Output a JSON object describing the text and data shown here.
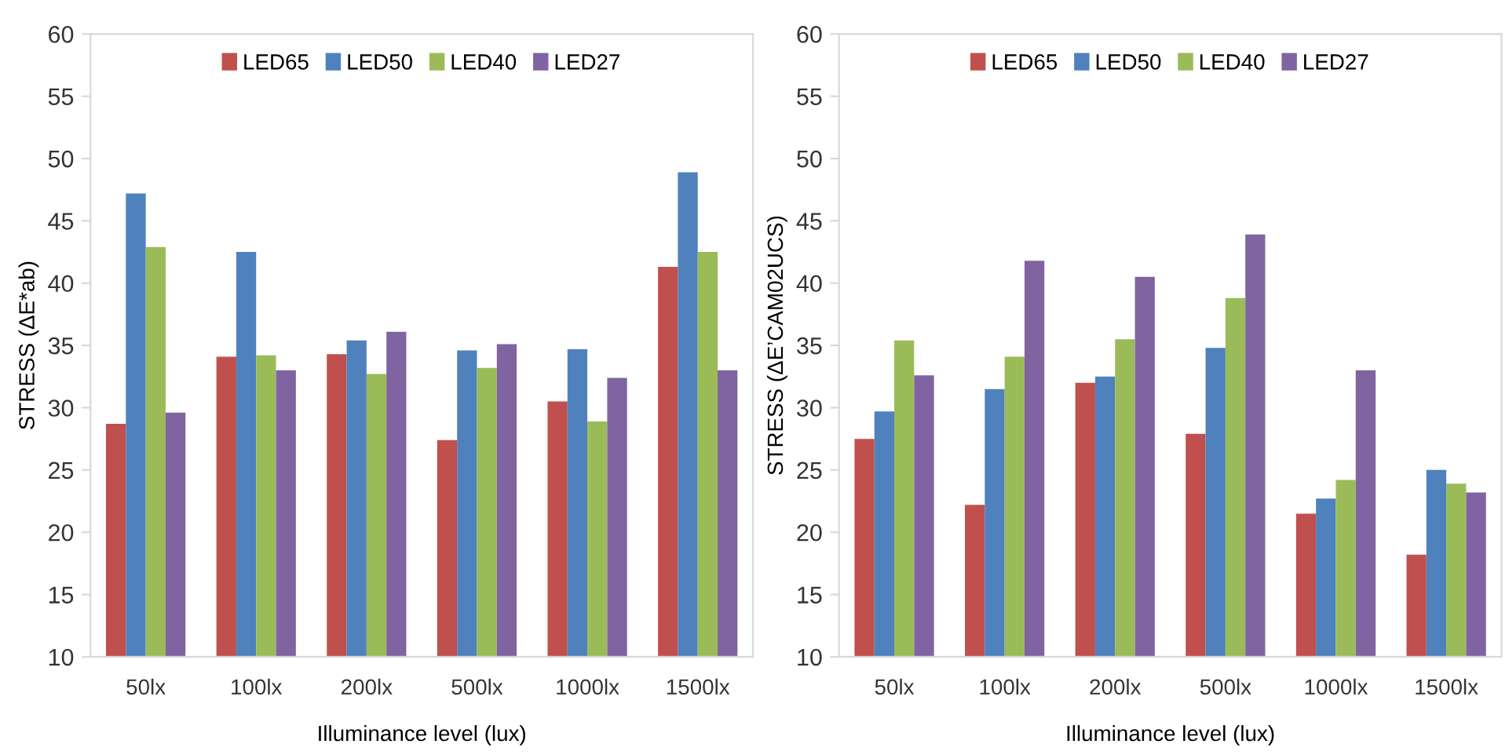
{
  "chart_data": [
    {
      "type": "bar",
      "xlabel": "Illuminance level (lux)",
      "ylabel": "STRESS (ΔE*ab)",
      "categories": [
        "50lx",
        "100lx",
        "200lx",
        "500lx",
        "1000lx",
        "1500lx"
      ],
      "ylim": [
        10,
        60
      ],
      "yticks": [
        10,
        15,
        20,
        25,
        30,
        35,
        40,
        45,
        50,
        55,
        60
      ],
      "grid": false,
      "legend": "top",
      "series": [
        {
          "name": "LED65",
          "color": "#c0504d",
          "values": [
            28.7,
            34.1,
            34.3,
            27.4,
            30.5,
            41.3
          ]
        },
        {
          "name": "LED50",
          "color": "#4f81bd",
          "values": [
            47.2,
            42.5,
            35.4,
            34.6,
            34.7,
            48.9
          ]
        },
        {
          "name": "LED40",
          "color": "#9bbb59",
          "values": [
            42.9,
            34.2,
            32.7,
            33.2,
            28.9,
            42.5
          ]
        },
        {
          "name": "LED27",
          "color": "#8064a2",
          "values": [
            29.6,
            33.0,
            36.1,
            35.1,
            32.4,
            33.0
          ]
        }
      ]
    },
    {
      "type": "bar",
      "xlabel": "Illuminance level (lux)",
      "ylabel": "STRESS (ΔE’CAM02UCS)",
      "categories": [
        "50lx",
        "100lx",
        "200lx",
        "500lx",
        "1000lx",
        "1500lx"
      ],
      "ylim": [
        10,
        60
      ],
      "yticks": [
        10,
        15,
        20,
        25,
        30,
        35,
        40,
        45,
        50,
        55,
        60
      ],
      "grid": false,
      "legend": "top",
      "series": [
        {
          "name": "LED65",
          "color": "#c0504d",
          "values": [
            27.5,
            22.2,
            32.0,
            27.9,
            21.5,
            18.2
          ]
        },
        {
          "name": "LED50",
          "color": "#4f81bd",
          "values": [
            29.7,
            31.5,
            32.5,
            34.8,
            22.7,
            25.0
          ]
        },
        {
          "name": "LED40",
          "color": "#9bbb59",
          "values": [
            35.4,
            34.1,
            35.5,
            38.8,
            24.2,
            23.9
          ]
        },
        {
          "name": "LED27",
          "color": "#8064a2",
          "values": [
            32.6,
            41.8,
            40.5,
            43.9,
            33.0,
            23.2
          ]
        }
      ]
    }
  ]
}
